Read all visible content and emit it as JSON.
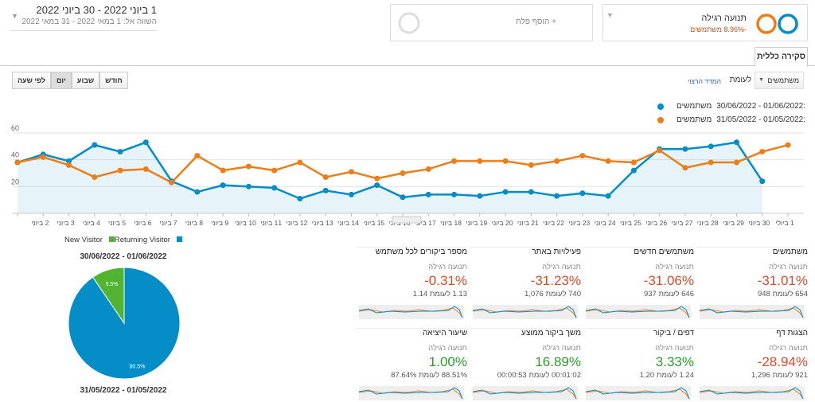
{
  "header": {
    "date_range": "1 ביוני 2022 - 30 ביוני 2022",
    "compare": "השווה אל: 1 במאי 2022 - 31 במאי 2022",
    "segment": "תנועה רגילה",
    "segment_detail": "-8.96% משתמשים",
    "add_segment": "+ הוסף פלח"
  },
  "tab": "סקירה כללית",
  "controls": {
    "metric": "משתמשים",
    "versus": "לעומת",
    "choose_metric": "המדד הרצוי",
    "granularity": [
      "לפי שעה",
      "יום",
      "שבוע",
      "חודש"
    ]
  },
  "chart_data": [
    {
      "type": "line",
      "categories": [
        null,
        "2 ביוני",
        "3 ביוני",
        "4 ביוני",
        "5 ביוני",
        "6 ביוני",
        "7 ביוני",
        "8 ביוני",
        "9 ביוני",
        "10 ביוני",
        "11 ביוני",
        "12 ביוני",
        "13 ביוני",
        "14 ביוני",
        "15 ביוני",
        "16 ביוני",
        "17 ביוני",
        "18 ביוני",
        "19 ביוני",
        "20 ביוני",
        "21 ביוני",
        "22 ביוני",
        "23 ביוני",
        "24 ביוני",
        "25 ביוני",
        "26 ביוני",
        "27 ביוני",
        "28 ביוני",
        "29 ביוני",
        "30 ביוני",
        "1 ביולי"
      ],
      "ylim": [
        0,
        60
      ],
      "yticks": [
        20,
        40,
        60
      ],
      "grid": true,
      "series": [
        {
          "name": "משתמשים",
          "range": "30/06/2022 - 01/06/2022:",
          "color": "#058dc7",
          "values": [
            38,
            44,
            39,
            51,
            46,
            53,
            24,
            16,
            21,
            20,
            19,
            11,
            17,
            14,
            21,
            12,
            14,
            14,
            13,
            16,
            16,
            13,
            15,
            13,
            32,
            48,
            48,
            50,
            53,
            24,
            null
          ]
        },
        {
          "name": "משתמשים",
          "range": "31/05/2022 - 01/05/2022:",
          "color": "#ed7e17",
          "values": [
            38,
            42,
            36,
            27,
            32,
            33,
            23,
            43,
            32,
            35,
            32,
            38,
            27,
            31,
            26,
            30,
            33,
            39,
            39,
            39,
            36,
            39,
            43,
            39,
            38,
            47,
            34,
            38,
            38,
            46,
            51
          ]
        }
      ]
    },
    {
      "type": "pie",
      "title": "30/06/2022 - 01/06/2022",
      "subtitle": "31/05/2022 - 01/05/2022",
      "categories": [
        "New Visitor",
        "Returning Visitor"
      ],
      "values": [
        90.5,
        9.5
      ],
      "value_labels": [
        "90.5%",
        "9.5%"
      ],
      "colors": [
        "#058dc7",
        "#50b432"
      ]
    }
  ],
  "cards": [
    {
      "title": "משתמשים",
      "segment": "תנועה רגילה",
      "change": "-31.01%",
      "detail": "654 לעומת 948",
      "color": "#dc4b2a"
    },
    {
      "title": "משתמשים חדשים",
      "segment": "תנועה רגילה",
      "change": "-31.06%",
      "detail": "646 לעומת 937",
      "color": "#dc4b2a"
    },
    {
      "title": "פעילויות באתר",
      "segment": "תנועה רגילה",
      "change": "-31.23%",
      "detail": "740 לעומת 1,076",
      "color": "#dc4b2a"
    },
    {
      "title": "מספר ביקורים לכל משתמש",
      "segment": "תנועה רגילה",
      "change": "-0.31%",
      "detail": "1.13 לעומת 1.14",
      "color": "#dc4b2a"
    },
    {
      "title": "הצגות דף",
      "segment": "תנועה רגילה",
      "change": "-28.94%",
      "detail": "921 לעומת 1,296",
      "color": "#dc4b2a"
    },
    {
      "title": "דפים / ביקור",
      "segment": "תנועה רגילה",
      "change": "3.33%",
      "detail": "1.24 לעומת 1.20",
      "color": "#2a9d2a"
    },
    {
      "title": "משך ביקור ממוצע",
      "segment": "תנועה רגילה",
      "change": "16.89%",
      "detail": "00:01:02 לעומת 00:00:53",
      "color": "#2a9d2a"
    },
    {
      "title": "שיעור היציאה",
      "segment": "תנועה רגילה",
      "change": "1.00%",
      "detail": "88.51% לעומת 87.64%",
      "color": "#2a9d2a"
    }
  ]
}
